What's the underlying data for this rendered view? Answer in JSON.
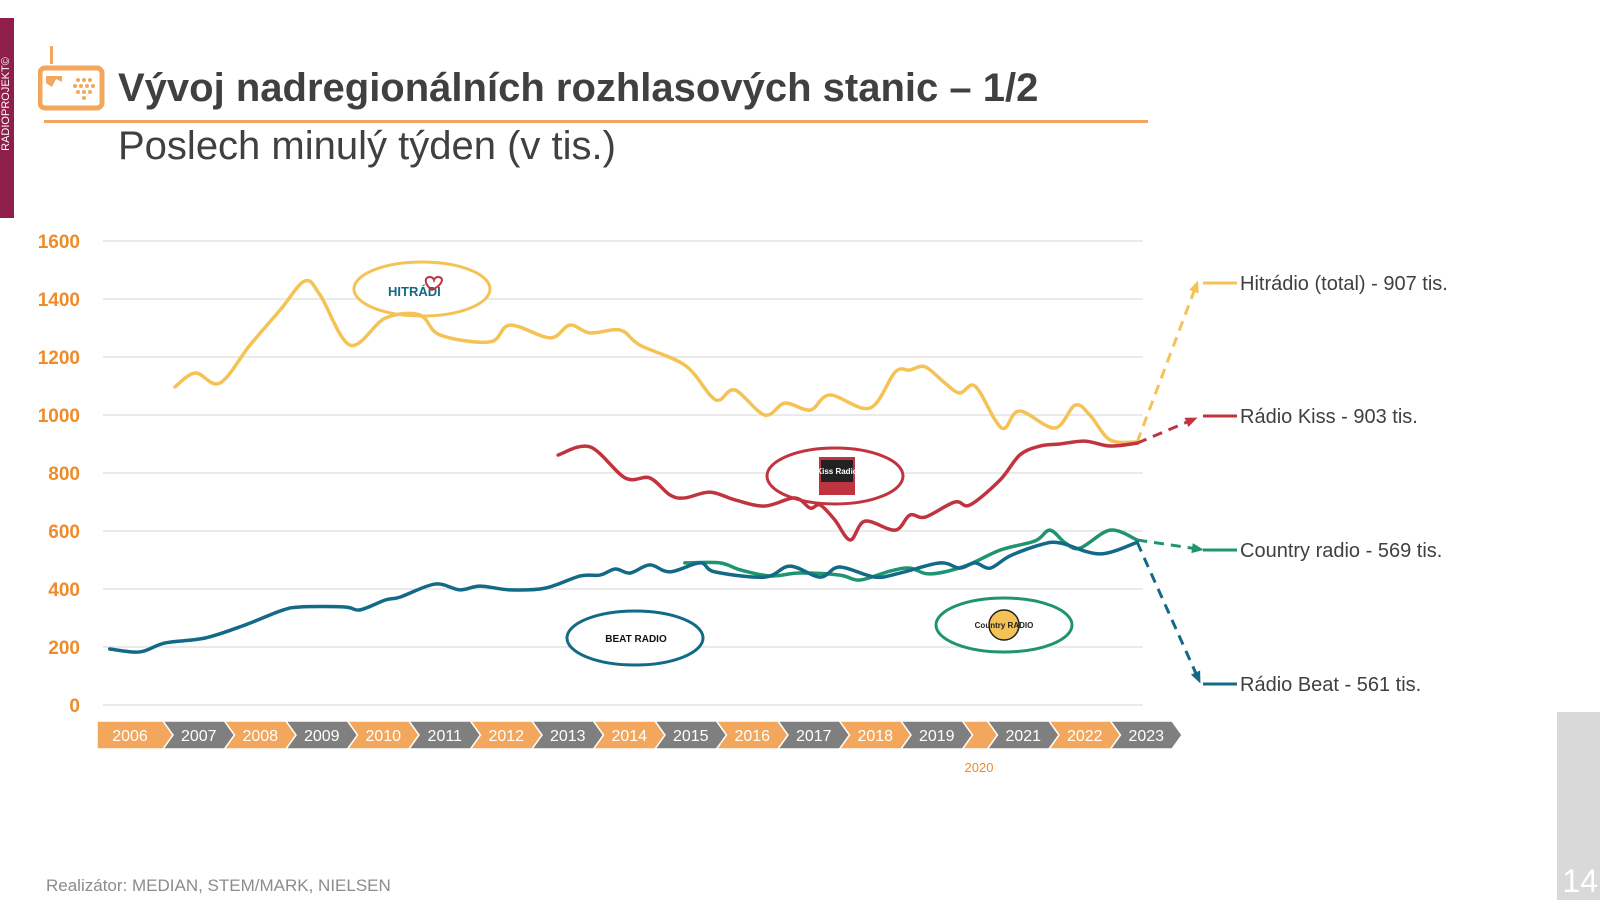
{
  "header": {
    "side_tag": "RADIOPROJEKT©",
    "title": "Vývoj nadregionálních rozhlasových stanic – 1/2",
    "subtitle": "Poslech minulý týden (v tis.)",
    "icon": "radio-icon"
  },
  "footer": {
    "source": "Realizátor: MEDIAN, STEM/MARK, NIELSEN",
    "page_number": "14"
  },
  "colors": {
    "accent": "#f2a75c",
    "grey_chip": "#7f7f7f",
    "hitradio": "#f5c255",
    "kiss": "#c0343f",
    "country": "#1f9470",
    "beat": "#136a86"
  },
  "logos": {
    "hitradio": "HITRÁDI",
    "kiss": "Kiss Radio",
    "beat": "BEAT RADIO",
    "country": "Country RADIO"
  },
  "chart_data": {
    "type": "line",
    "title": "",
    "xlabel": "",
    "ylabel": "",
    "ylim": [
      0,
      1600
    ],
    "yticks": [
      "0",
      "200",
      "400",
      "600",
      "800",
      "1000",
      "1200",
      "1400",
      "1600"
    ],
    "xticks": [
      "2006",
      "2007",
      "2008",
      "2009",
      "2010",
      "2011",
      "2012",
      "2013",
      "2014",
      "2015",
      "2016",
      "2017",
      "2018",
      "2019",
      "",
      "2021",
      "2022",
      "2023"
    ],
    "xtick_note": "2020",
    "grid": true,
    "legend_placement": "right",
    "series": [
      {
        "name": "Hitrádio (total) - 907 tis.",
        "key": "hitradio",
        "x": [
          2007.17,
          2007.5,
          2007.9,
          2008.39,
          2008.88,
          2009.28,
          2009.53,
          2010.02,
          2010.59,
          2011.15,
          2011.48,
          2012.29,
          2012.62,
          2013.27,
          2013.59,
          2013.92,
          2014.41,
          2014.73,
          2015.46,
          2015.87,
          2016.03,
          2016.28,
          2016.76,
          2017.09,
          2017.5,
          2017.82,
          2018.47,
          2018.88,
          2019.12,
          2019.37,
          2019.69,
          2019.93,
          2020.44,
          2021.1,
          2021.26,
          2021.5,
          2022.07,
          2022.4,
          2022.64,
          2022.97,
          2023.41
        ],
        "y": [
          1097,
          1145,
          1110,
          1241,
          1362,
          1462,
          1414,
          1241,
          1334,
          1345,
          1276,
          1252,
          1310,
          1266,
          1310,
          1283,
          1293,
          1241,
          1172,
          1069,
          1052,
          1086,
          1000,
          1041,
          1017,
          1069,
          1024,
          1148,
          1155,
          1166,
          1110,
          1076,
          1100,
          983,
          955,
          1014,
          955,
          1034,
          1000,
          914,
          907
        ]
      },
      {
        "name": "Rádio Kiss - 903 tis.",
        "key": "kiss",
        "x": [
          2013.4,
          2013.92,
          2014.49,
          2014.89,
          2015.22,
          2015.46,
          2015.87,
          2016.28,
          2016.76,
          2017.25,
          2017.5,
          2017.66,
          2017.9,
          2018.15,
          2018.39,
          2018.88,
          2019.12,
          2019.37,
          2019.85,
          2020.24,
          2021.18,
          2021.5,
          2021.83,
          2022.15,
          2022.56,
          2022.97,
          2023.41
        ],
        "y": [
          862,
          890,
          783,
          783,
          724,
          714,
          734,
          707,
          686,
          714,
          679,
          690,
          638,
          569,
          634,
          603,
          655,
          648,
          700,
          690,
          776,
          862,
          893,
          900,
          910,
          893,
          903
        ]
      },
      {
        "name": "Country radio - 569 tis.",
        "key": "country",
        "x": [
          2015.46,
          2016.03,
          2016.36,
          2016.85,
          2017.33,
          2017.98,
          2018.31,
          2018.8,
          2019.12,
          2019.45,
          2020.04,
          2021.18,
          2021.75,
          2021.99,
          2022.24,
          2022.48,
          2022.97,
          2023.41
        ],
        "y": [
          490,
          490,
          466,
          445,
          455,
          448,
          431,
          462,
          472,
          452,
          479,
          534,
          566,
          603,
          559,
          541,
          603,
          569
        ]
      },
      {
        "name": "Rádio Beat - 561 tis.",
        "key": "beat",
        "x": [
          2006.11,
          2006.6,
          2007.01,
          2007.66,
          2008.31,
          2008.88,
          2009.2,
          2009.93,
          2010.18,
          2010.59,
          2010.83,
          2011.4,
          2011.8,
          2012.13,
          2012.62,
          2013.19,
          2013.76,
          2014.08,
          2014.33,
          2014.57,
          2014.89,
          2015.22,
          2015.71,
          2015.95,
          2016.76,
          2017.17,
          2017.66,
          2017.98,
          2018.55,
          2018.96,
          2019.61,
          2019.93,
          2020.44,
          2021.02,
          2021.34,
          2021.83,
          2022.15,
          2022.8,
          2023.41
        ],
        "y": [
          193,
          183,
          214,
          231,
          276,
          324,
          338,
          338,
          328,
          362,
          372,
          417,
          397,
          410,
          397,
          403,
          445,
          448,
          469,
          455,
          483,
          459,
          490,
          459,
          441,
          479,
          441,
          476,
          441,
          455,
          490,
          472,
          490,
          472,
          514,
          552,
          559,
          521,
          561
        ]
      }
    ]
  }
}
